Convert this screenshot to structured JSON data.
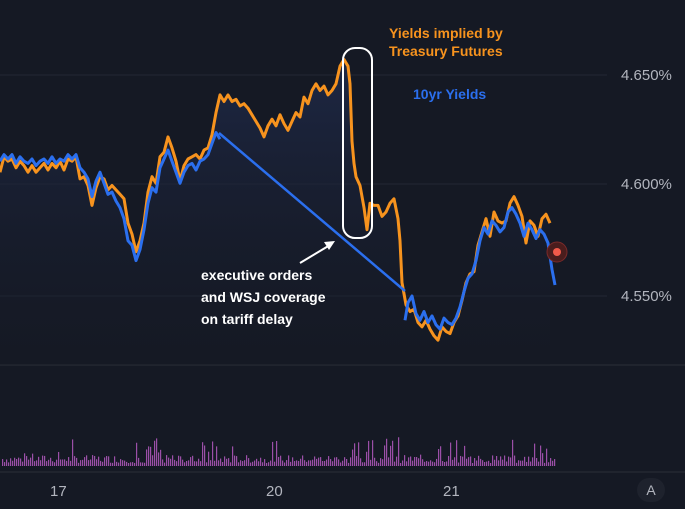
{
  "chart_data": {
    "type": "line",
    "y_axis": {
      "ticks": [
        "4.650%",
        "4.600%",
        "4.550%"
      ],
      "tick_values": [
        4.65,
        4.6,
        4.55
      ],
      "position": "right",
      "range": [
        4.5,
        4.68
      ]
    },
    "x_axis": {
      "ticks": [
        "17",
        "20",
        "21"
      ]
    },
    "grid": true,
    "series": [
      {
        "name": "Yields implied by Treasury Futures",
        "color": "#f7931e",
        "points": [
          [
            0,
            4.606
          ],
          [
            4,
            4.613
          ],
          [
            8,
            4.611
          ],
          [
            12,
            4.612
          ],
          [
            16,
            4.608
          ],
          [
            20,
            4.611
          ],
          [
            24,
            4.609
          ],
          [
            28,
            4.606
          ],
          [
            32,
            4.609
          ],
          [
            36,
            4.606
          ],
          [
            40,
            4.608
          ],
          [
            44,
            4.61
          ],
          [
            48,
            4.607
          ],
          [
            52,
            4.61
          ],
          [
            56,
            4.608
          ],
          [
            60,
            4.611
          ],
          [
            64,
            4.607
          ],
          [
            68,
            4.612
          ],
          [
            72,
            4.611
          ],
          [
            76,
            4.613
          ],
          [
            80,
            4.603
          ],
          [
            84,
            4.604
          ],
          [
            88,
            4.6
          ],
          [
            92,
            4.591
          ],
          [
            96,
            4.599
          ],
          [
            100,
            4.604
          ],
          [
            104,
            4.603
          ],
          [
            108,
            4.598
          ],
          [
            112,
            4.6
          ],
          [
            116,
            4.598
          ],
          [
            120,
            4.596
          ],
          [
            124,
            4.594
          ],
          [
            128,
            4.583
          ],
          [
            132,
            4.578
          ],
          [
            136,
            4.57
          ],
          [
            140,
            4.575
          ],
          [
            144,
            4.583
          ],
          [
            148,
            4.597
          ],
          [
            152,
            4.604
          ],
          [
            156,
            4.601
          ],
          [
            160,
            4.613
          ],
          [
            164,
            4.615
          ],
          [
            168,
            4.622
          ],
          [
            172,
            4.617
          ],
          [
            176,
            4.611
          ],
          [
            180,
            4.602
          ],
          [
            184,
            4.609
          ],
          [
            188,
            4.612
          ],
          [
            192,
            4.613
          ],
          [
            196,
            4.614
          ],
          [
            200,
            4.612
          ],
          [
            204,
            4.616
          ],
          [
            208,
            4.617
          ],
          [
            212,
            4.623
          ],
          [
            216,
            4.633
          ],
          [
            220,
            4.641
          ],
          [
            224,
            4.638
          ],
          [
            228,
            4.641
          ],
          [
            232,
            4.638
          ],
          [
            236,
            4.639
          ],
          [
            240,
            4.636
          ],
          [
            244,
            4.637
          ],
          [
            248,
            4.635
          ],
          [
            252,
            4.632
          ],
          [
            256,
            4.629
          ],
          [
            260,
            4.626
          ],
          [
            264,
            4.622
          ],
          [
            268,
            4.627
          ],
          [
            272,
            4.63
          ],
          [
            276,
            4.627
          ],
          [
            280,
            4.632
          ],
          [
            284,
            4.628
          ],
          [
            288,
            4.625
          ],
          [
            292,
            4.629
          ],
          [
            296,
            4.633
          ],
          [
            300,
            4.631
          ],
          [
            304,
            4.64
          ],
          [
            308,
            4.637
          ],
          [
            312,
            4.643
          ],
          [
            316,
            4.646
          ],
          [
            320,
            4.643
          ],
          [
            324,
            4.645
          ],
          [
            328,
            4.641
          ],
          [
            332,
            4.643
          ],
          [
            336,
            4.646
          ],
          [
            340,
            4.654
          ],
          [
            344,
            4.657
          ],
          [
            348,
            4.654
          ],
          [
            350,
            4.646
          ],
          [
            352,
            4.62
          ],
          [
            354,
            4.61
          ],
          [
            356,
            4.604
          ],
          [
            360,
            4.6
          ],
          [
            364,
            4.59
          ],
          [
            367,
            4.58
          ],
          [
            370,
            4.592
          ],
          [
            374,
            4.591
          ],
          [
            378,
            4.591
          ],
          [
            382,
            4.586
          ],
          [
            386,
            4.588
          ],
          [
            390,
            4.592
          ],
          [
            394,
            4.594
          ],
          [
            398,
            4.585
          ],
          [
            400,
            4.575
          ],
          [
            402,
            4.556
          ],
          [
            406,
            4.546
          ],
          [
            410,
            4.543
          ],
          [
            414,
            4.544
          ],
          [
            418,
            4.538
          ],
          [
            422,
            4.536
          ],
          [
            426,
            4.539
          ],
          [
            430,
            4.535
          ],
          [
            434,
            4.532
          ],
          [
            438,
            4.53
          ],
          [
            442,
            4.536
          ],
          [
            446,
            4.534
          ],
          [
            450,
            4.533
          ],
          [
            454,
            4.538
          ],
          [
            458,
            4.541
          ],
          [
            462,
            4.548
          ],
          [
            466,
            4.556
          ],
          [
            470,
            4.56
          ],
          [
            474,
            4.561
          ],
          [
            478,
            4.573
          ],
          [
            482,
            4.579
          ],
          [
            486,
            4.585
          ],
          [
            490,
            4.577
          ],
          [
            494,
            4.588
          ],
          [
            498,
            4.584
          ],
          [
            502,
            4.583
          ],
          [
            506,
            4.584
          ],
          [
            510,
            4.592
          ],
          [
            514,
            4.595
          ],
          [
            518,
            4.591
          ],
          [
            522,
            4.586
          ],
          [
            526,
            4.574
          ],
          [
            530,
            4.584
          ],
          [
            534,
            4.582
          ],
          [
            538,
            4.577
          ],
          [
            542,
            4.585
          ],
          [
            546,
            4.587
          ],
          [
            550,
            4.583
          ]
        ]
      },
      {
        "name": "10yr Yields",
        "color": "#2b6fee",
        "points": [
          [
            0,
            4.611
          ],
          [
            4,
            4.614
          ],
          [
            8,
            4.612
          ],
          [
            12,
            4.614
          ],
          [
            16,
            4.61
          ],
          [
            20,
            4.613
          ],
          [
            24,
            4.611
          ],
          [
            28,
            4.61
          ],
          [
            32,
            4.612
          ],
          [
            36,
            4.609
          ],
          [
            40,
            4.611
          ],
          [
            44,
            4.612
          ],
          [
            48,
            4.61
          ],
          [
            52,
            4.613
          ],
          [
            56,
            4.61
          ],
          [
            60,
            4.612
          ],
          [
            64,
            4.611
          ],
          [
            68,
            4.614
          ],
          [
            72,
            4.612
          ],
          [
            76,
            4.614
          ],
          [
            80,
            4.608
          ],
          [
            84,
            4.606
          ],
          [
            88,
            4.603
          ],
          [
            92,
            4.595
          ],
          [
            96,
            4.602
          ],
          [
            100,
            4.606
          ],
          [
            104,
            4.601
          ],
          [
            108,
            4.596
          ],
          [
            112,
            4.597
          ],
          [
            116,
            4.593
          ],
          [
            120,
            4.59
          ],
          [
            124,
            4.585
          ],
          [
            128,
            4.575
          ],
          [
            132,
            4.573
          ],
          [
            136,
            4.566
          ],
          [
            140,
            4.571
          ],
          [
            144,
            4.58
          ],
          [
            148,
            4.592
          ],
          [
            152,
            4.599
          ],
          [
            156,
            4.597
          ],
          [
            160,
            4.608
          ],
          [
            164,
            4.612
          ],
          [
            168,
            4.616
          ],
          [
            172,
            4.611
          ],
          [
            176,
            4.606
          ],
          [
            180,
            4.601
          ],
          [
            184,
            4.606
          ],
          [
            188,
            4.609
          ],
          [
            192,
            4.61
          ],
          [
            196,
            4.607
          ],
          [
            200,
            4.611
          ],
          [
            204,
            4.612
          ],
          [
            208,
            4.614
          ],
          [
            212,
            4.619
          ],
          [
            216,
            4.624
          ],
          [
            220,
            4.621
          ],
          [
            405,
            4.539
          ],
          [
            408,
            4.547
          ],
          [
            412,
            4.55
          ],
          [
            416,
            4.542
          ],
          [
            420,
            4.539
          ],
          [
            424,
            4.543
          ],
          [
            428,
            4.538
          ],
          [
            432,
            4.541
          ],
          [
            436,
            4.537
          ],
          [
            440,
            4.535
          ],
          [
            444,
            4.54
          ],
          [
            448,
            4.538
          ],
          [
            452,
            4.537
          ],
          [
            456,
            4.54
          ],
          [
            460,
            4.545
          ],
          [
            464,
            4.552
          ],
          [
            468,
            4.558
          ],
          [
            472,
            4.56
          ],
          [
            476,
            4.566
          ],
          [
            480,
            4.575
          ],
          [
            484,
            4.581
          ],
          [
            488,
            4.578
          ],
          [
            492,
            4.584
          ],
          [
            496,
            4.582
          ],
          [
            500,
            4.579
          ],
          [
            504,
            4.581
          ],
          [
            508,
            4.588
          ],
          [
            512,
            4.59
          ],
          [
            516,
            4.587
          ],
          [
            520,
            4.583
          ],
          [
            524,
            4.577
          ],
          [
            528,
            4.583
          ],
          [
            532,
            4.58
          ],
          [
            536,
            4.576
          ],
          [
            540,
            4.58
          ],
          [
            544,
            4.578
          ],
          [
            548,
            4.574
          ],
          [
            552,
            4.562
          ],
          [
            555,
            4.555
          ]
        ]
      }
    ],
    "annotations": [
      {
        "text_lines": [
          "executive orders",
          "and WSJ coverage",
          "on tariff delay"
        ]
      }
    ],
    "legend": {
      "placement": "top-right",
      "entries": [
        "Yields implied by Treasury Futures",
        "10yr Yields"
      ]
    }
  },
  "labels": {
    "legend_futures_line1": "Yields implied by",
    "legend_futures_line2": "Treasury Futures",
    "legend_10yr": "10yr Yields",
    "annotation_line1": "executive orders",
    "annotation_line2": "and WSJ coverage",
    "annotation_line3": "on tariff delay",
    "auto_button": "A"
  },
  "colors": {
    "background": "#151924",
    "futures": "#f7931e",
    "tenyr": "#2b6fee",
    "volume": "#9b4fa8",
    "grid": "#232733"
  }
}
